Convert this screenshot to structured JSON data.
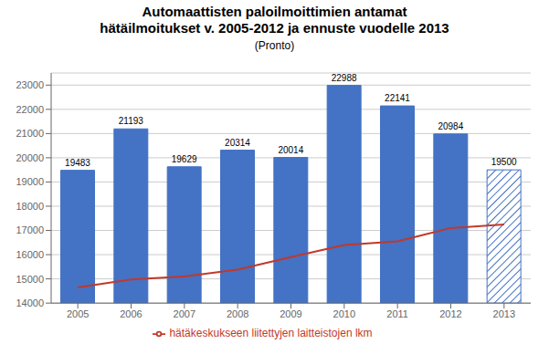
{
  "chart_data": {
    "type": "bar",
    "title": "Automaattisten paloilmoittimien antamat\nhätäilmoitukset v. 2005-2012 ja ennuste vuodelle 2013",
    "subtitle": "(Pronto)",
    "categories": [
      "2005",
      "2006",
      "2007",
      "2008",
      "2009",
      "2010",
      "2011",
      "2012",
      "2013"
    ],
    "series": [
      {
        "type": "bar",
        "color": "#4472C4",
        "colors": [
          "#4472C4",
          "#4472C4",
          "#4472C4",
          "#4472C4",
          "#4472C4",
          "#4472C4",
          "#4472C4",
          "#4472C4",
          "#FFFFFF"
        ],
        "data_labels": true,
        "values": [
          19483,
          21193,
          19629,
          20314,
          20014,
          22988,
          22141,
          20984,
          19500
        ]
      },
      {
        "type": "line",
        "name": "hätäkeskukseen liitettyjen laitteistojen lkm",
        "color": "#C0392B",
        "values": [
          14650,
          14980,
          15100,
          15380,
          15900,
          16400,
          16550,
          17100,
          17250
        ]
      }
    ],
    "ylim": [
      14000,
      23500
    ],
    "yticks": [
      14000,
      15000,
      16000,
      17000,
      18000,
      19000,
      20000,
      21000,
      22000,
      23000
    ],
    "grid": true,
    "legend": "bottom"
  }
}
